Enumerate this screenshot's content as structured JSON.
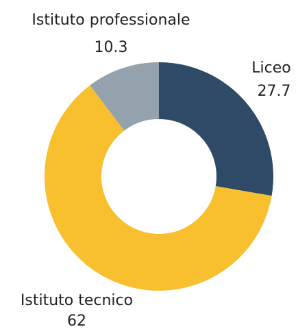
{
  "chart_data": {
    "type": "pie",
    "donut": true,
    "categories": [
      "Liceo",
      "Istituto tecnico",
      "Istituto professionale"
    ],
    "values": [
      27.7,
      62,
      10.3
    ],
    "colors": [
      "#2e4a66",
      "#f8bf2f",
      "#94a2ae"
    ]
  }
}
